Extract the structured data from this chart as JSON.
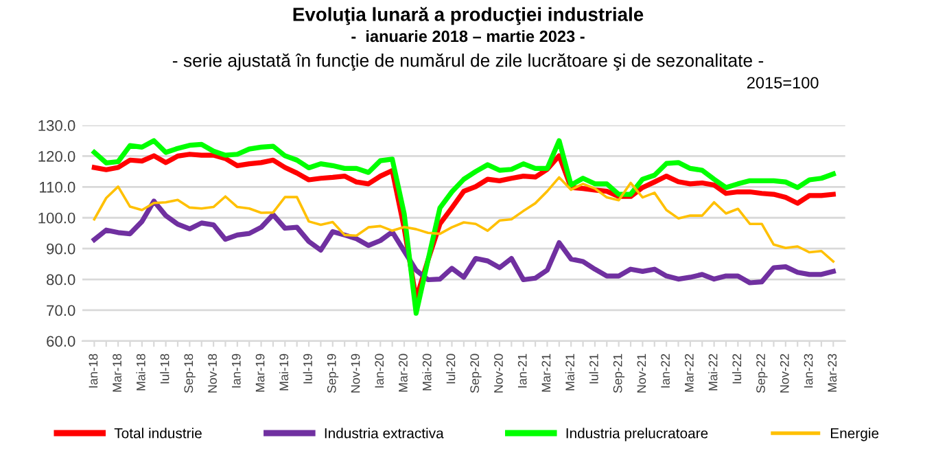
{
  "chart_data": {
    "type": "line",
    "title": "Evoluţia lunară a producţiei industriale",
    "subtitle": "-  ianuarie 2018 – martie 2023 -",
    "annotations": [
      "- serie ajustată în funcţie de numărul de zile lucrătoare şi de sezonalitate -",
      "2015=100"
    ],
    "categories": [
      "Ian-18",
      null,
      "Mar-18",
      null,
      "Mai-18",
      null,
      "Iul-18",
      null,
      "Sep-18",
      null,
      "Nov-18",
      null,
      "Ian-19",
      null,
      "Mar-19",
      null,
      "Mai-19",
      null,
      "Iul-19",
      null,
      "Sep-19",
      null,
      "Nov-19",
      null,
      "Ian-20",
      null,
      "Mar-20",
      null,
      "Mai-20",
      null,
      "Iul-20",
      null,
      "Sep-20",
      null,
      "Nov-20",
      null,
      "Ian-21",
      null,
      "Mar-21",
      null,
      "Mai-21",
      null,
      "Iul-21",
      null,
      "Sep-21",
      null,
      "Nov-21",
      null,
      "Ian-22",
      null,
      "Mar-22",
      null,
      "Mai-22",
      null,
      "Iul-22",
      null,
      "Sep-22",
      null,
      "Nov-22",
      null,
      "Ian-23",
      null,
      "Mar-23"
    ],
    "series": [
      {
        "name": "Total industrie",
        "color": "#ff0000",
        "values": [
          116.3,
          115.6,
          116.3,
          118.7,
          118.4,
          120.1,
          117.9,
          120.0,
          120.6,
          120.3,
          120.3,
          119.2,
          116.9,
          117.5,
          117.9,
          118.7,
          116.3,
          114.5,
          112.3,
          112.8,
          113.1,
          113.5,
          111.6,
          111.0,
          113.5,
          115.3,
          96.6,
          73.7,
          86.3,
          98.0,
          103.2,
          108.6,
          110.1,
          112.5,
          112.0,
          112.8,
          113.5,
          113.2,
          115.7,
          120.1,
          109.8,
          109.5,
          109.0,
          108.6,
          106.9,
          106.9,
          109.8,
          111.6,
          113.5,
          111.7,
          111.0,
          111.3,
          110.6,
          107.9,
          108.4,
          108.4,
          107.9,
          107.6,
          106.6,
          104.7,
          107.2,
          107.2,
          107.6
        ]
      },
      {
        "name": "Industria extractiva",
        "color": "#7030a0",
        "values": [
          92.9,
          96.0,
          95.2,
          94.8,
          98.8,
          105.4,
          100.7,
          97.9,
          96.4,
          98.3,
          97.7,
          93.0,
          94.4,
          94.9,
          96.9,
          101.0,
          96.6,
          96.9,
          92.3,
          89.5,
          95.5,
          94.4,
          93.2,
          91.0,
          92.6,
          95.4,
          89.2,
          83.0,
          79.9,
          80.1,
          83.6,
          80.7,
          86.8,
          86.0,
          83.8,
          86.8,
          79.9,
          80.4,
          83.0,
          91.9,
          86.6,
          85.8,
          83.3,
          81.1,
          81.1,
          83.3,
          82.6,
          83.3,
          81.1,
          80.1,
          80.7,
          81.6,
          80.1,
          81.1,
          81.1,
          78.9,
          79.2,
          83.8,
          84.1,
          82.3,
          81.6,
          81.6,
          82.6
        ]
      },
      {
        "name": "Industria prelucratoare",
        "color": "#00ff00",
        "values": [
          121.2,
          117.8,
          118.2,
          123.4,
          122.9,
          125.0,
          121.2,
          122.5,
          123.5,
          123.8,
          121.6,
          120.3,
          120.6,
          122.3,
          122.9,
          123.2,
          120.1,
          118.7,
          116.2,
          117.5,
          116.9,
          116.0,
          116.0,
          114.7,
          118.5,
          119.0,
          101.3,
          69.0,
          86.3,
          103.2,
          108.4,
          112.5,
          115.0,
          117.2,
          115.4,
          115.7,
          117.5,
          116.0,
          116.0,
          125.0,
          110.6,
          112.8,
          111.0,
          111.0,
          107.6,
          107.6,
          112.5,
          113.8,
          117.6,
          117.9,
          116.0,
          115.4,
          112.5,
          109.8,
          111.0,
          112.0,
          112.0,
          112.0,
          111.6,
          109.8,
          112.3,
          112.8,
          114.2
        ]
      },
      {
        "name": "Energie",
        "color": "#ffc000",
        "values": [
          99.5,
          106.4,
          110.1,
          103.6,
          102.5,
          104.8,
          105.0,
          105.8,
          103.3,
          103.0,
          103.5,
          106.9,
          103.5,
          103.0,
          101.6,
          101.7,
          106.7,
          106.7,
          98.8,
          97.7,
          98.6,
          94.4,
          94.2,
          96.9,
          97.3,
          95.8,
          97.0,
          96.3,
          95.1,
          94.8,
          96.9,
          98.5,
          98.0,
          95.8,
          99.1,
          99.5,
          102.2,
          104.7,
          108.6,
          113.1,
          109.1,
          111.0,
          109.5,
          106.6,
          105.7,
          111.3,
          106.6,
          108.1,
          102.5,
          99.8,
          100.7,
          100.7,
          105.0,
          101.4,
          102.9,
          98.0,
          98.0,
          91.3,
          90.2,
          90.7,
          88.8,
          89.2,
          85.8
        ]
      }
    ],
    "ylim": [
      60,
      130
    ],
    "yticks": [
      {
        "value": 60,
        "label": "60.0"
      },
      {
        "value": 70,
        "label": "70.0"
      },
      {
        "value": 80,
        "label": "80.0"
      },
      {
        "value": 90,
        "label": "90.0"
      },
      {
        "value": 100,
        "label": "100.0"
      },
      {
        "value": 110,
        "label": "110.0"
      },
      {
        "value": 120,
        "label": "120.0"
      },
      {
        "value": 130,
        "label": "130.0"
      }
    ],
    "grid": "y",
    "legend": "bottom",
    "marker": "none",
    "line_style": "solid"
  }
}
